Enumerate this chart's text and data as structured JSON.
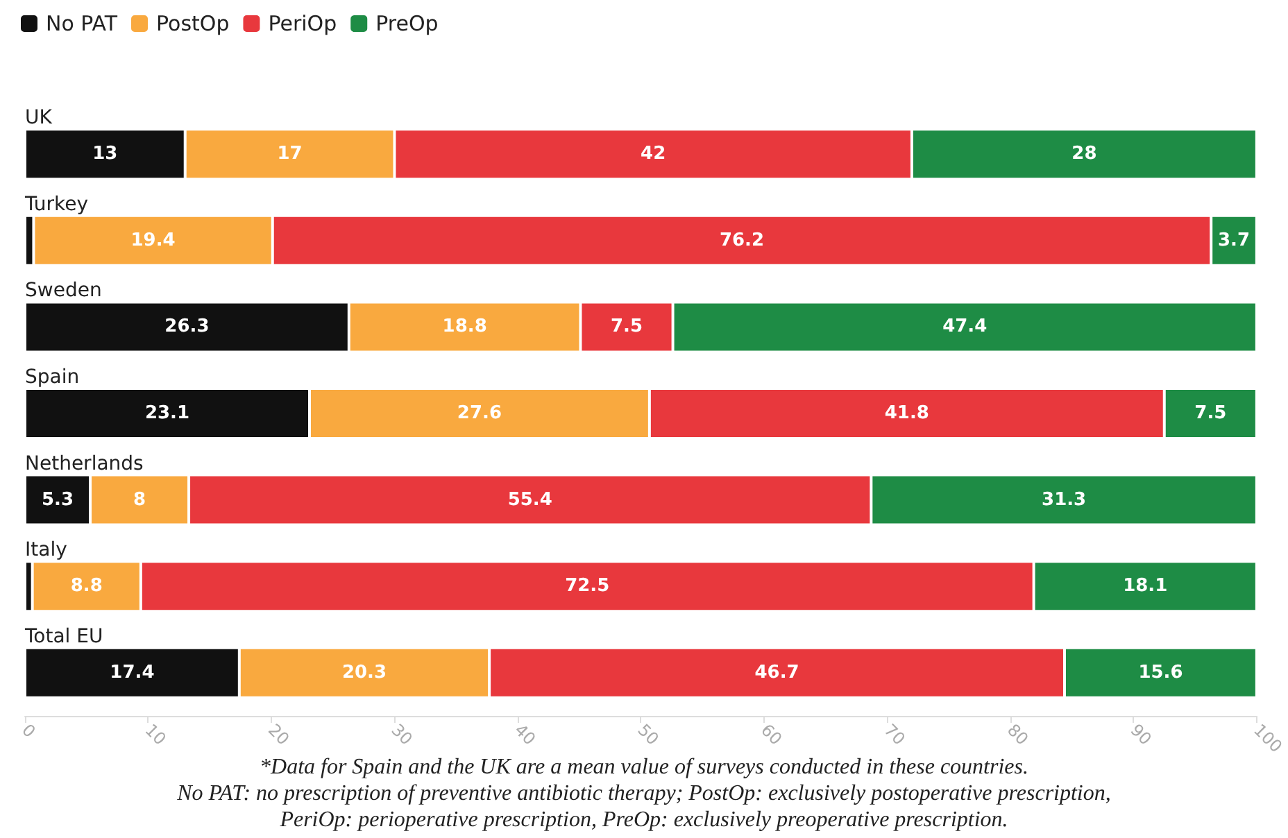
{
  "chart_data": {
    "type": "bar",
    "orientation": "horizontal",
    "stacked": true,
    "categories": [
      "UK",
      "Turkey",
      "Sweden",
      "Spain",
      "Netherlands",
      "Italy",
      "Total EU"
    ],
    "series": [
      {
        "name": "No PAT",
        "color": "#111111",
        "values": [
          13,
          0.7,
          26.3,
          23.1,
          5.3,
          0.6,
          17.4
        ],
        "value_labels": [
          "13",
          null,
          "26.3",
          "23.1",
          "5.3",
          null,
          "17.4"
        ]
      },
      {
        "name": "PostOp",
        "color": "#f9a93f",
        "values": [
          17,
          19.4,
          18.8,
          27.6,
          8,
          8.8,
          20.3
        ],
        "value_labels": [
          "17",
          "19.4",
          "18.8",
          "27.6",
          "8",
          "8.8",
          "20.3"
        ]
      },
      {
        "name": "PeriOp",
        "color": "#e8383d",
        "values": [
          42,
          76.2,
          7.5,
          41.8,
          55.4,
          72.5,
          46.7
        ],
        "value_labels": [
          "42",
          "76.2",
          "7.5",
          "41.8",
          "55.4",
          "72.5",
          "46.7"
        ]
      },
      {
        "name": "PreOp",
        "color": "#1e8c45",
        "values": [
          28,
          3.7,
          47.4,
          7.5,
          31.3,
          18.1,
          15.6
        ],
        "value_labels": [
          "28",
          "3.7",
          "47.4",
          "7.5",
          "31.3",
          "18.1",
          "15.6"
        ]
      }
    ],
    "xlim": [
      0,
      100
    ],
    "xticks": [
      0,
      10,
      20,
      30,
      40,
      50,
      60,
      70,
      80,
      90,
      100
    ],
    "grid": false,
    "legend": "top left",
    "annotations": [
      "*Data for Spain and the UK are a mean value of surveys conducted in these countries.",
      "No PAT: no prescription of preventive antibiotic therapy; PostOp: exclusively postoperative prescription,",
      "PeriOp: perioperative prescription, PreOp: exclusively preoperative prescription."
    ]
  }
}
